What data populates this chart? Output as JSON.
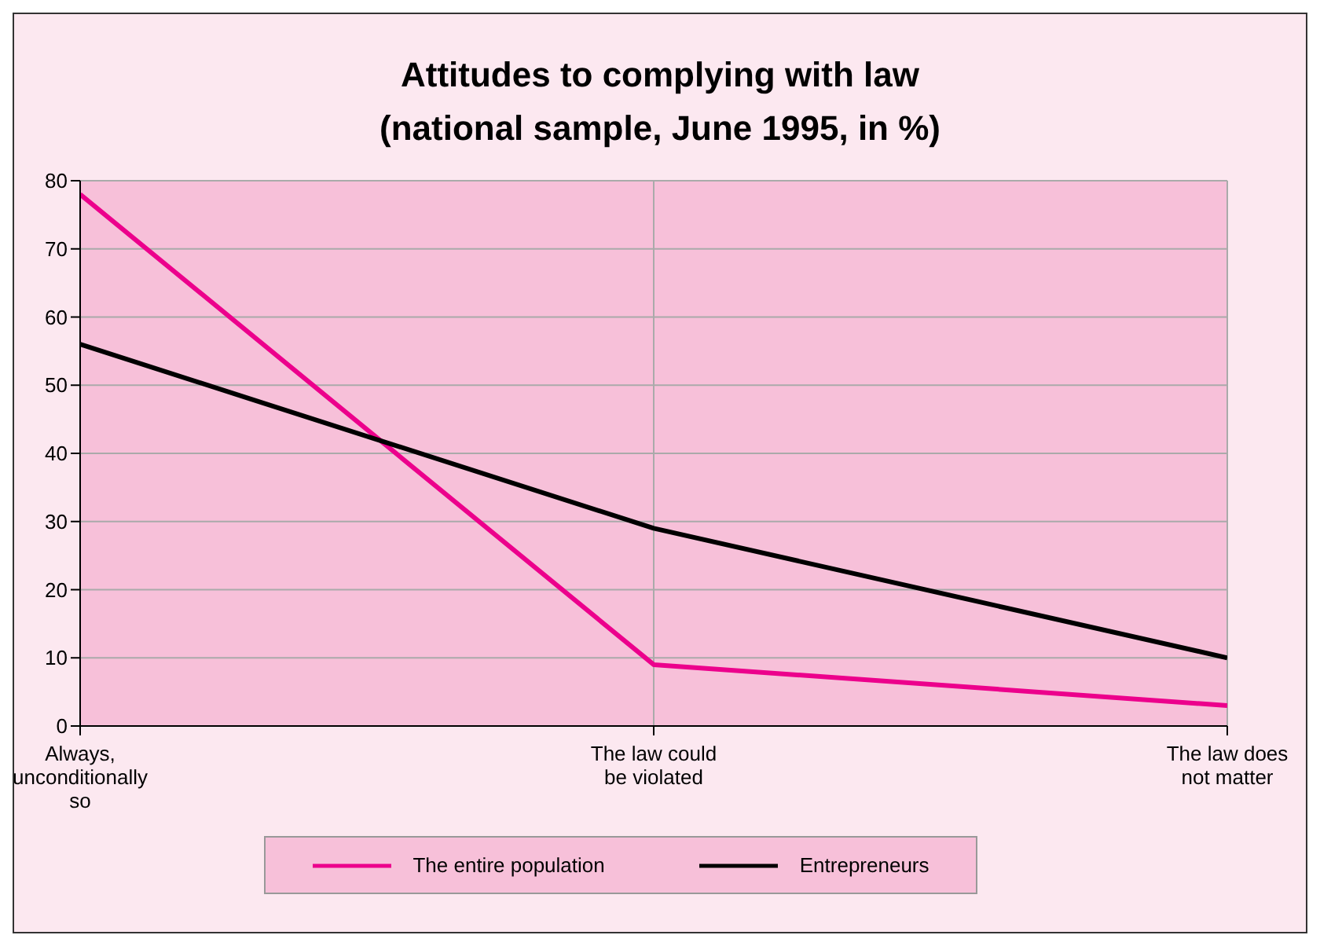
{
  "chart_data": {
    "type": "line",
    "title": "Attitudes to complying with law\n(national sample, June 1995, in %)",
    "categories": [
      "Always,\nunconditionally\nso",
      "The law could\nbe violated",
      "The law does\nnot matter"
    ],
    "series": [
      {
        "name": "The entire population",
        "color": "#ec008c",
        "values": [
          78,
          9,
          3
        ]
      },
      {
        "name": "Entrepreneurs",
        "color": "#000000",
        "values": [
          56,
          29,
          10
        ]
      }
    ],
    "ylim": [
      0,
      80
    ],
    "yticks": [
      0,
      10,
      20,
      30,
      40,
      50,
      60,
      70,
      80
    ],
    "grid": true,
    "legend": "bottom",
    "marker": "none",
    "line_style": "solid"
  }
}
